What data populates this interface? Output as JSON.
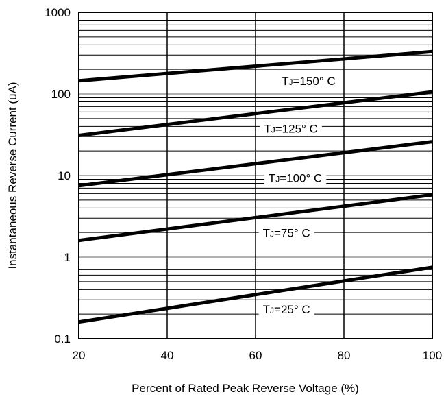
{
  "chart_data": {
    "type": "line",
    "title": "",
    "xlabel": "Percent of Rated Peak Reverse Voltage (%)",
    "ylabel": "Instantaneous Reverse Current (uA)",
    "xlim": [
      20,
      100
    ],
    "ylim": [
      0.1,
      1000
    ],
    "yscale": "log",
    "grid": true,
    "x_ticks": [
      "20",
      "40",
      "60",
      "80",
      "100"
    ],
    "y_ticks": [
      "0.1",
      "1",
      "10",
      "100",
      "1000"
    ],
    "series": [
      {
        "name": "TJ=150° C",
        "label_main": "T",
        "label_sub": "J",
        "label_rest": "=150° C",
        "label_x": 72,
        "x": [
          20,
          100
        ],
        "y": [
          145,
          330
        ]
      },
      {
        "name": "TJ=125° C",
        "label_main": "T",
        "label_sub": "J",
        "label_rest": "=125° C",
        "label_x": 68,
        "x": [
          20,
          100
        ],
        "y": [
          31,
          106
        ]
      },
      {
        "name": "TJ=100° C",
        "label_main": "T",
        "label_sub": "J",
        "label_rest": "=100° C",
        "label_x": 69,
        "x": [
          20,
          100
        ],
        "y": [
          7.5,
          26
        ]
      },
      {
        "name": "TJ=75° C",
        "label_main": "T",
        "label_sub": "J",
        "label_rest": "=75° C",
        "label_x": 67,
        "x": [
          20,
          100
        ],
        "y": [
          1.6,
          5.8
        ]
      },
      {
        "name": "TJ=25° C",
        "label_main": "T",
        "label_sub": "J",
        "label_rest": "=25° C",
        "label_x": 67,
        "x": [
          20,
          100
        ],
        "y": [
          0.16,
          0.75
        ]
      }
    ]
  }
}
